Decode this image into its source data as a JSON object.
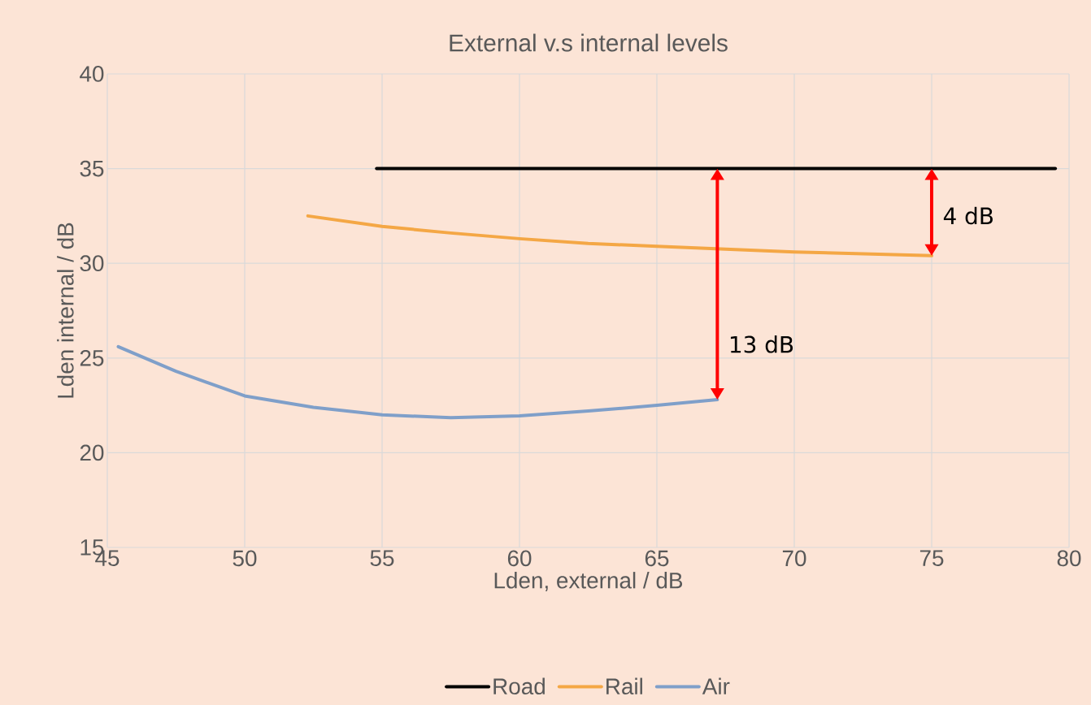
{
  "chart_data": {
    "type": "line",
    "title": "External v.s internal levels",
    "xlabel": "Lden, external / dB",
    "ylabel": "Lden internal / dB",
    "series": [
      {
        "name": "Road",
        "color": "#000000",
        "x": [
          54.8,
          79.5
        ],
        "values": [
          35,
          35
        ]
      },
      {
        "name": "Rail",
        "color": "#f4a745",
        "x": [
          52.3,
          55,
          57.5,
          60,
          62.5,
          65,
          67.5,
          70,
          72.5,
          75
        ],
        "values": [
          32.5,
          31.95,
          31.6,
          31.3,
          31.05,
          30.9,
          30.75,
          30.6,
          30.5,
          30.4
        ]
      },
      {
        "name": "Air",
        "color": "#7f9fc9",
        "x": [
          45.4,
          47.5,
          50,
          52.5,
          55,
          57.5,
          60,
          62.5,
          65,
          67.2
        ],
        "values": [
          25.6,
          24.3,
          23.0,
          22.4,
          22.0,
          21.85,
          21.95,
          22.2,
          22.5,
          22.8
        ]
      }
    ],
    "annotations": [
      {
        "text": "13 dB",
        "x": 67.2,
        "y": 22.8
      },
      {
        "text": "4 dB",
        "x": 75,
        "y": 30.4
      }
    ],
    "xlim": [
      45,
      80
    ],
    "xticks": [
      45,
      50,
      55,
      60,
      65,
      70,
      75,
      80
    ],
    "ylim": [
      15,
      40
    ],
    "yticks": [
      15,
      20,
      25,
      30,
      35,
      40
    ],
    "grid": true,
    "legend": "bottom",
    "marker": "none",
    "line_style": "solid"
  }
}
